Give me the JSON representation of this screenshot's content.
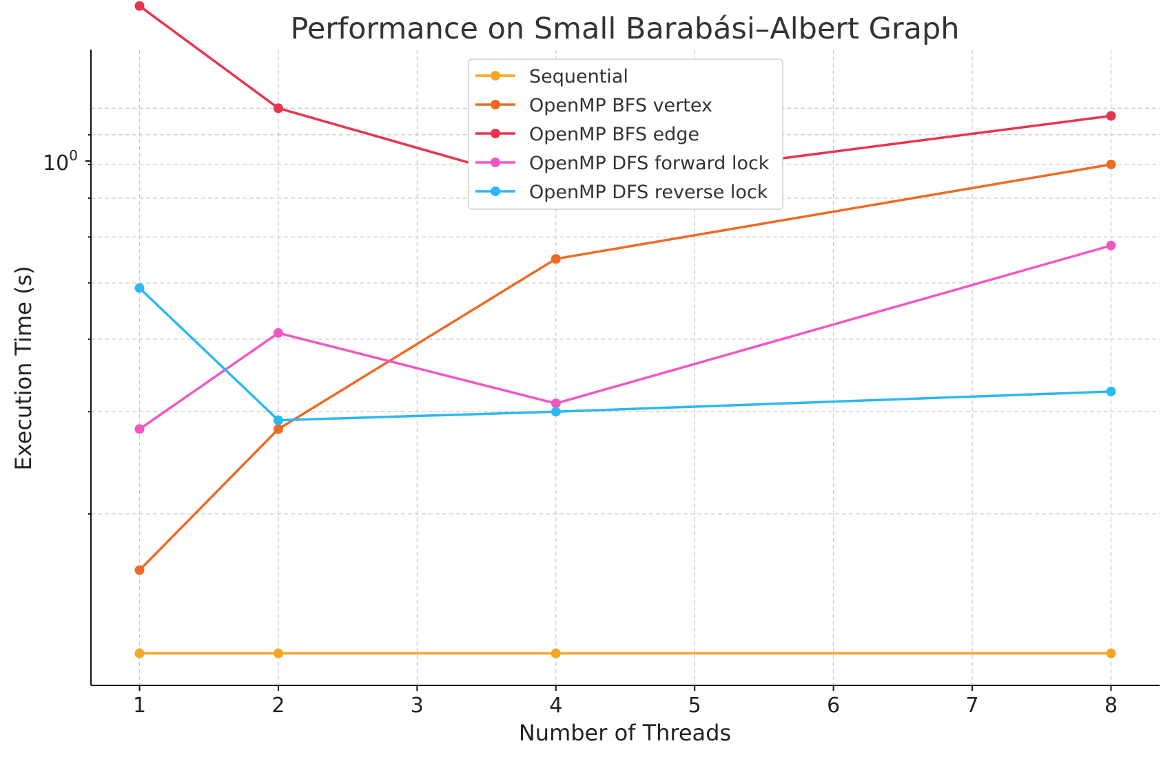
{
  "chart_data": {
    "type": "line",
    "title": "Performance on Small Barabási–Albert Graph",
    "xlabel": "Number of Threads",
    "ylabel": "Execution Time (s)",
    "x": [
      1,
      2,
      4,
      8
    ],
    "x_ticks": [
      "1",
      "2",
      "3",
      "4",
      "5",
      "6",
      "7",
      "8"
    ],
    "x_tick_values": [
      1,
      2,
      3,
      4,
      5,
      6,
      7,
      8
    ],
    "xlim": [
      0.65,
      8.35
    ],
    "y_scale": "log",
    "ylim": [
      0.1013,
      1.262
    ],
    "y_major_tick": {
      "value": 1.0,
      "base": "10",
      "exponent": "0"
    },
    "y_minor_ticks": [
      0.2,
      0.3,
      0.4,
      0.5,
      0.6,
      0.7,
      0.8,
      0.9
    ],
    "grid": true,
    "legend_position": "top-center",
    "series": [
      {
        "name": "Sequential",
        "color": "#f5a623",
        "values": [
          0.115,
          0.115,
          0.115,
          0.115
        ]
      },
      {
        "name": "OpenMP BFS vertex",
        "color": "#ef6a25",
        "values": [
          0.16,
          0.28,
          0.55,
          0.8
        ]
      },
      {
        "name": "OpenMP BFS edge",
        "color": "#e8344e",
        "values": [
          1.5,
          1.0,
          0.73,
          0.97
        ]
      },
      {
        "name": "OpenMP DFS forward lock",
        "color": "#f157c3",
        "values": [
          0.28,
          0.41,
          0.31,
          0.58
        ]
      },
      {
        "name": "OpenMP DFS reverse lock",
        "color": "#2cb8f0",
        "values": [
          0.49,
          0.29,
          0.3,
          0.325
        ]
      }
    ]
  }
}
